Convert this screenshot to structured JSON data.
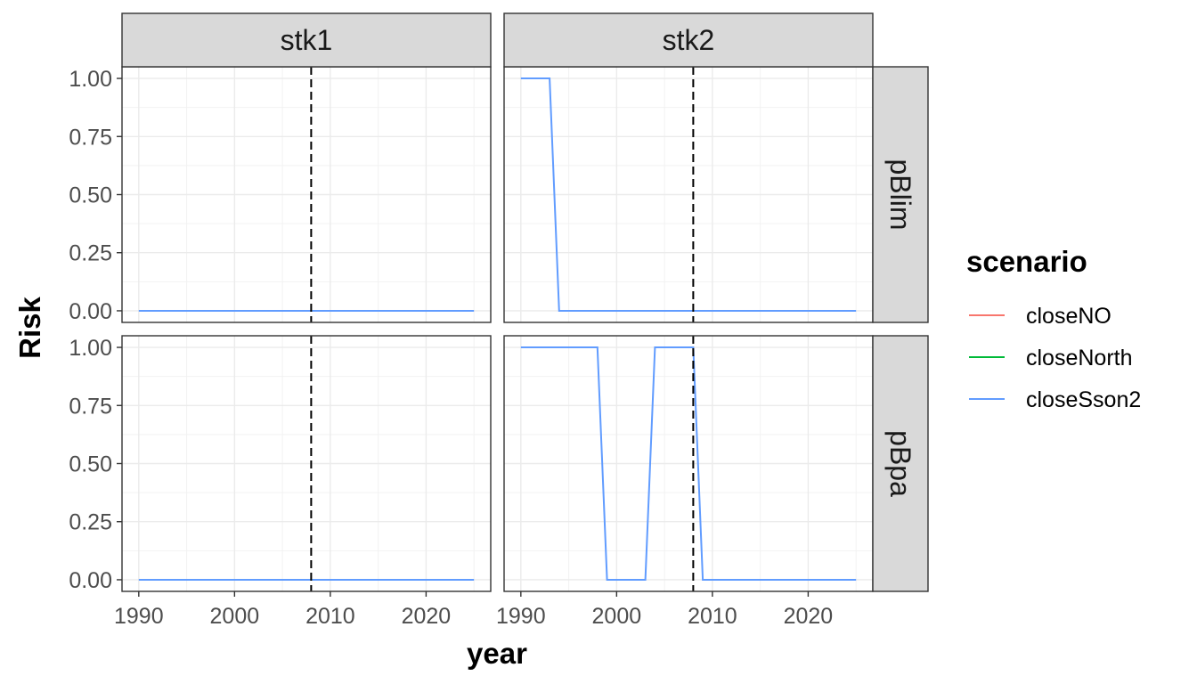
{
  "chart_data": {
    "type": "line",
    "xlabel": "year",
    "ylabel": "Risk",
    "xlim": [
      1988.25,
      2026.75
    ],
    "ylim": [
      -0.05,
      1.05
    ],
    "x_ticks": [
      1990,
      2000,
      2010,
      2020
    ],
    "y_ticks": [
      0.0,
      0.25,
      0.5,
      0.75,
      1.0
    ],
    "x_tick_labels": [
      "1990",
      "2000",
      "2010",
      "2020"
    ],
    "y_tick_labels": [
      "0.00",
      "0.25",
      "0.50",
      "0.75",
      "1.00"
    ],
    "grid": true,
    "facet_columns": [
      "stk1",
      "stk2"
    ],
    "facet_rows": [
      "pBlim",
      "pBpa"
    ],
    "vline": {
      "x": 2008,
      "style": "dashed",
      "color": "#000000"
    },
    "legend": {
      "title": "scenario",
      "placement": "right",
      "entries": [
        {
          "name": "closeNO",
          "color": "#F8766D"
        },
        {
          "name": "closeNorth",
          "color": "#00BA38"
        },
        {
          "name": "closeSson2",
          "color": "#619CFF"
        }
      ]
    },
    "panels": [
      {
        "column": "stk1",
        "row": "pBlim",
        "series": [
          {
            "name": "closeSson2",
            "x": [
              1990,
              2025
            ],
            "y": [
              0,
              0
            ]
          }
        ]
      },
      {
        "column": "stk2",
        "row": "pBlim",
        "series": [
          {
            "name": "closeSson2",
            "x": [
              1990,
              1993,
              1994,
              2025
            ],
            "y": [
              1,
              1,
              0,
              0
            ]
          }
        ]
      },
      {
        "column": "stk1",
        "row": "pBpa",
        "series": [
          {
            "name": "closeSson2",
            "x": [
              1990,
              2025
            ],
            "y": [
              0,
              0
            ]
          }
        ]
      },
      {
        "column": "stk2",
        "row": "pBpa",
        "series": [
          {
            "name": "closeSson2",
            "x": [
              1990,
              1998,
              1999,
              2003,
              2004,
              2008,
              2009,
              2025
            ],
            "y": [
              1,
              1,
              0,
              0,
              1,
              1,
              0,
              0
            ]
          }
        ]
      }
    ]
  }
}
